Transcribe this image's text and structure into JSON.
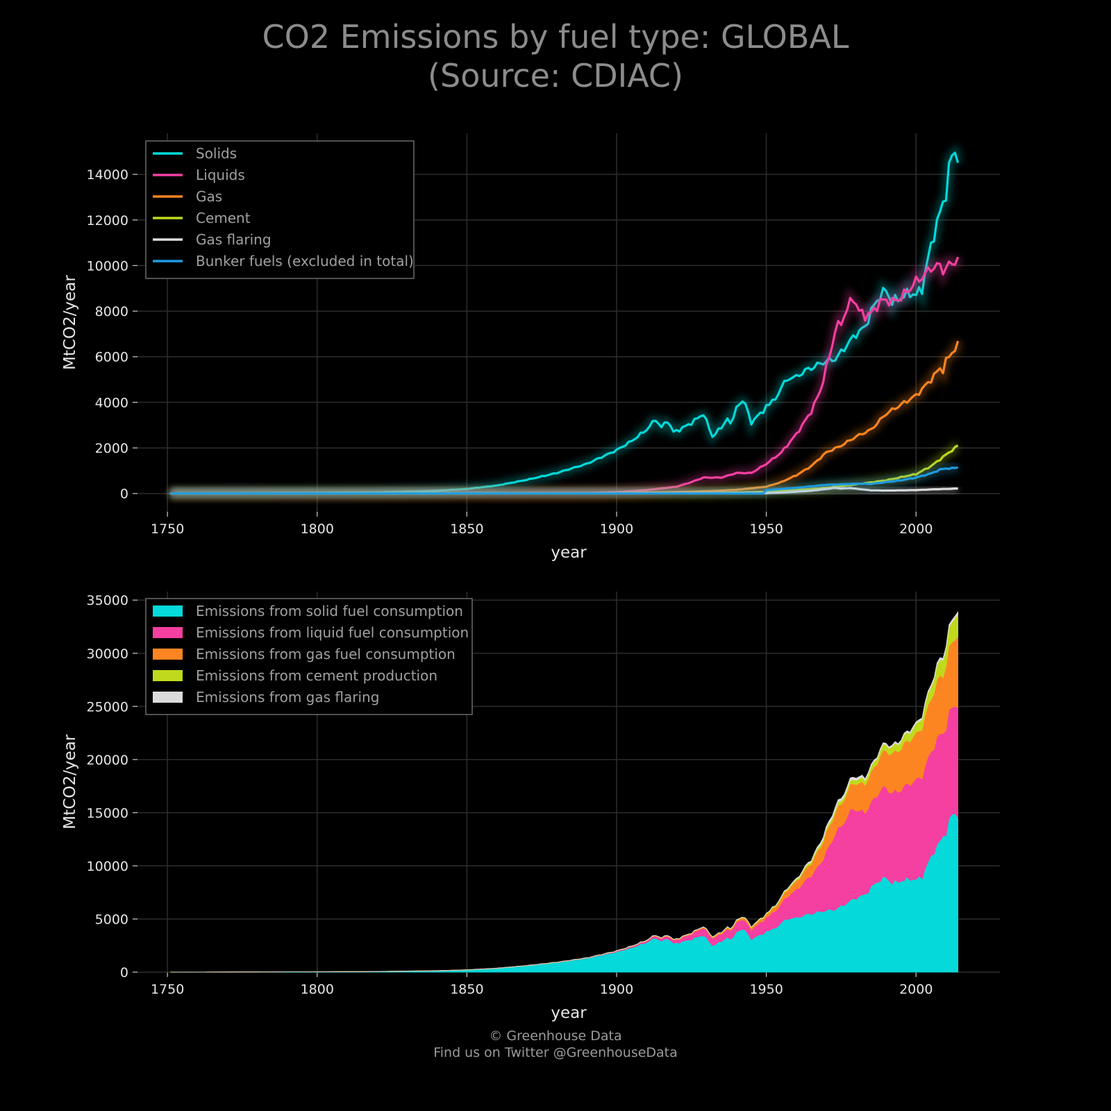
{
  "title_line1": "CO2 Emissions by fuel type: GLOBAL",
  "title_line2": "(Source: CDIAC)",
  "footer_line1": "© Greenhouse Data",
  "footer_line2": "Find us on Twitter @GreenhouseData",
  "colors": {
    "background": "#000000",
    "solids": "#05d9d9",
    "liquids": "#f53fa1",
    "gas": "#fc8522",
    "cement": "#c1d91c",
    "gas_flaring": "#dcdcdc",
    "bunker": "#1e9be0",
    "grid": "#2d2d2d"
  },
  "chart_data": [
    {
      "type": "line",
      "xlabel": "year",
      "ylabel": "MtCO2/year",
      "xlim": [
        1740,
        2028
      ],
      "ylim": [
        -800,
        15800
      ],
      "xticks": [
        1750,
        1800,
        1850,
        1900,
        1950,
        2000
      ],
      "yticks": [
        0,
        2000,
        4000,
        6000,
        8000,
        10000,
        12000,
        14000
      ],
      "grid": true,
      "legend_position": "top-left",
      "series": [
        {
          "name": "Solids",
          "color_key": "solids",
          "points": [
            [
              1751,
              0
            ],
            [
              1800,
              30
            ],
            [
              1820,
              50
            ],
            [
              1840,
              120
            ],
            [
              1850,
              200
            ],
            [
              1860,
              350
            ],
            [
              1870,
              600
            ],
            [
              1880,
              900
            ],
            [
              1890,
              1300
            ],
            [
              1900,
              1900
            ],
            [
              1905,
              2300
            ],
            [
              1910,
              2800
            ],
            [
              1913,
              3250
            ],
            [
              1915,
              2900
            ],
            [
              1917,
              3200
            ],
            [
              1919,
              2700
            ],
            [
              1921,
              2800
            ],
            [
              1925,
              3100
            ],
            [
              1929,
              3500
            ],
            [
              1932,
              2500
            ],
            [
              1935,
              2900
            ],
            [
              1937,
              3300
            ],
            [
              1938,
              3000
            ],
            [
              1940,
              3800
            ],
            [
              1943,
              4050
            ],
            [
              1945,
              3000
            ],
            [
              1947,
              3500
            ],
            [
              1949,
              3500
            ],
            [
              1950,
              3900
            ],
            [
              1953,
              4100
            ],
            [
              1955,
              4700
            ],
            [
              1958,
              5100
            ],
            [
              1960,
              5100
            ],
            [
              1963,
              5400
            ],
            [
              1965,
              5500
            ],
            [
              1968,
              5700
            ],
            [
              1970,
              5800
            ],
            [
              1973,
              5900
            ],
            [
              1975,
              6200
            ],
            [
              1978,
              6700
            ],
            [
              1980,
              7000
            ],
            [
              1983,
              7300
            ],
            [
              1985,
              8000
            ],
            [
              1988,
              8700
            ],
            [
              1990,
              8900
            ],
            [
              1992,
              8400
            ],
            [
              1995,
              8600
            ],
            [
              1998,
              8800
            ],
            [
              2000,
              8700
            ],
            [
              2002,
              9000
            ],
            [
              2004,
              10300
            ],
            [
              2006,
              11400
            ],
            [
              2008,
              12300
            ],
            [
              2010,
              13200
            ],
            [
              2011,
              14200
            ],
            [
              2012,
              14800
            ],
            [
              2013,
              15000
            ],
            [
              2014,
              14800
            ]
          ]
        },
        {
          "name": "Liquids",
          "color_key": "liquids",
          "points": [
            [
              1751,
              0
            ],
            [
              1870,
              5
            ],
            [
              1890,
              20
            ],
            [
              1900,
              60
            ],
            [
              1910,
              150
            ],
            [
              1920,
              300
            ],
            [
              1925,
              500
            ],
            [
              1929,
              700
            ],
            [
              1935,
              700
            ],
            [
              1940,
              900
            ],
            [
              1945,
              900
            ],
            [
              1950,
              1300
            ],
            [
              1955,
              1800
            ],
            [
              1960,
              2600
            ],
            [
              1965,
              3600
            ],
            [
              1968,
              4500
            ],
            [
              1970,
              5500
            ],
            [
              1972,
              6500
            ],
            [
              1973,
              7200
            ],
            [
              1975,
              7500
            ],
            [
              1977,
              8100
            ],
            [
              1979,
              8600
            ],
            [
              1980,
              8300
            ],
            [
              1981,
              8000
            ],
            [
              1983,
              7800
            ],
            [
              1985,
              7900
            ],
            [
              1988,
              8400
            ],
            [
              1990,
              8500
            ],
            [
              1992,
              8400
            ],
            [
              1995,
              8600
            ],
            [
              1998,
              9000
            ],
            [
              2000,
              9300
            ],
            [
              2003,
              9600
            ],
            [
              2005,
              9900
            ],
            [
              2008,
              10000
            ],
            [
              2009,
              9800
            ],
            [
              2011,
              10000
            ],
            [
              2013,
              10200
            ],
            [
              2014,
              10300
            ]
          ]
        },
        {
          "name": "Gas",
          "color_key": "gas",
          "points": [
            [
              1751,
              0
            ],
            [
              1885,
              10
            ],
            [
              1900,
              20
            ],
            [
              1910,
              40
            ],
            [
              1920,
              60
            ],
            [
              1930,
              100
            ],
            [
              1940,
              160
            ],
            [
              1950,
              300
            ],
            [
              1955,
              500
            ],
            [
              1960,
              800
            ],
            [
              1965,
              1200
            ],
            [
              1970,
              1800
            ],
            [
              1975,
              2100
            ],
            [
              1980,
              2500
            ],
            [
              1985,
              2800
            ],
            [
              1990,
              3500
            ],
            [
              1995,
              3900
            ],
            [
              2000,
              4300
            ],
            [
              2005,
              5000
            ],
            [
              2008,
              5500
            ],
            [
              2009,
              5400
            ],
            [
              2010,
              5800
            ],
            [
              2012,
              6200
            ],
            [
              2014,
              6500
            ]
          ]
        },
        {
          "name": "Cement",
          "color_key": "cement",
          "points": [
            [
              1751,
              0
            ],
            [
              1928,
              10
            ],
            [
              1940,
              40
            ],
            [
              1950,
              70
            ],
            [
              1960,
              150
            ],
            [
              1970,
              250
            ],
            [
              1980,
              400
            ],
            [
              1990,
              580
            ],
            [
              2000,
              850
            ],
            [
              2005,
              1200
            ],
            [
              2008,
              1500
            ],
            [
              2010,
              1700
            ],
            [
              2012,
              1900
            ],
            [
              2014,
              2100
            ]
          ]
        },
        {
          "name": "Gas flaring",
          "color_key": "gas_flaring",
          "points": [
            [
              1751,
              0
            ],
            [
              1950,
              20
            ],
            [
              1955,
              40
            ],
            [
              1960,
              80
            ],
            [
              1965,
              120
            ],
            [
              1970,
              200
            ],
            [
              1973,
              250
            ],
            [
              1975,
              220
            ],
            [
              1978,
              240
            ],
            [
              1980,
              210
            ],
            [
              1985,
              140
            ],
            [
              1990,
              130
            ],
            [
              1995,
              140
            ],
            [
              2000,
              150
            ],
            [
              2005,
              180
            ],
            [
              2010,
              200
            ],
            [
              2014,
              220
            ]
          ]
        },
        {
          "name": "Bunker fuels (excluded in total)",
          "color_key": "bunker",
          "points": [
            [
              1751,
              0
            ],
            [
              1949,
              0
            ],
            [
              1950,
              150
            ],
            [
              1960,
              250
            ],
            [
              1970,
              380
            ],
            [
              1975,
              400
            ],
            [
              1980,
              430
            ],
            [
              1985,
              420
            ],
            [
              1990,
              500
            ],
            [
              1995,
              580
            ],
            [
              2000,
              700
            ],
            [
              2005,
              880
            ],
            [
              2008,
              1050
            ],
            [
              2010,
              1100
            ],
            [
              2012,
              1100
            ],
            [
              2014,
              1150
            ]
          ]
        }
      ]
    },
    {
      "type": "area",
      "stacked": true,
      "xlabel": "year",
      "ylabel": "MtCO2/year",
      "xlim": [
        1740,
        2028
      ],
      "ylim": [
        0,
        35800
      ],
      "xticks": [
        1750,
        1800,
        1850,
        1900,
        1950,
        2000
      ],
      "yticks": [
        0,
        5000,
        10000,
        15000,
        20000,
        25000,
        30000,
        35000
      ],
      "grid": true,
      "legend_position": "top-left",
      "series": [
        {
          "name": "Emissions from solid fuel consumption",
          "source": "Solids",
          "color_key": "solids"
        },
        {
          "name": "Emissions from liquid fuel consumption",
          "source": "Liquids",
          "color_key": "liquids"
        },
        {
          "name": "Emissions from gas fuel consumption",
          "source": "Gas",
          "color_key": "gas"
        },
        {
          "name": "Emissions from cement production",
          "source": "Cement",
          "color_key": "cement"
        },
        {
          "name": "Emissions from gas flaring",
          "source": "Gas flaring",
          "color_key": "gas_flaring"
        }
      ]
    }
  ]
}
